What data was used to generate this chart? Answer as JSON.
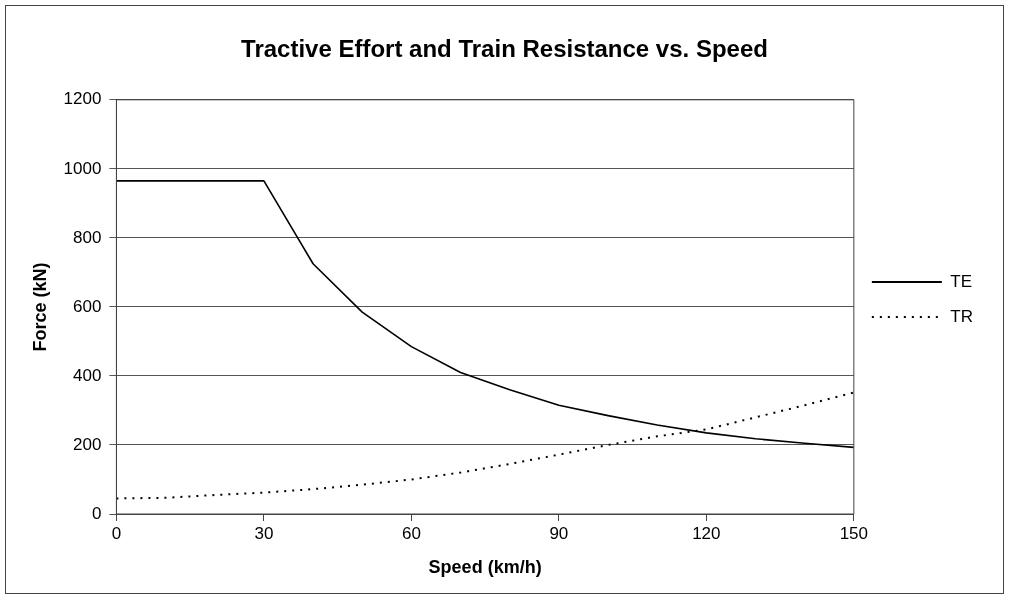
{
  "chart_data": {
    "type": "line",
    "title": "Tractive Effort and Train Resistance vs. Speed",
    "xlabel": "Speed (km/h)",
    "ylabel": "Force (kN)",
    "xlim": [
      0,
      150
    ],
    "xticks": [
      0,
      30,
      60,
      90,
      120,
      150
    ],
    "ylim": [
      0,
      1200
    ],
    "yticks": [
      0,
      200,
      400,
      600,
      800,
      1000,
      1200
    ],
    "grid": "y",
    "legend": "right",
    "marker": "none",
    "series": [
      {
        "name": "TE",
        "color": "#000000",
        "line_style": "solid",
        "x": [
          0,
          30,
          40,
          50,
          60,
          70,
          80,
          90,
          100,
          110,
          120,
          130,
          140,
          150
        ],
        "values": [
          965,
          965,
          725,
          585,
          485,
          410,
          360,
          315,
          285,
          258,
          235,
          218,
          205,
          193
        ]
      },
      {
        "name": "TR",
        "color": "#000000",
        "line_style": "dotted",
        "x": [
          0,
          10,
          20,
          30,
          40,
          50,
          60,
          70,
          80,
          90,
          100,
          110,
          120,
          130,
          140,
          150
        ],
        "values": [
          45,
          47,
          55,
          62,
          72,
          85,
          100,
          120,
          145,
          172,
          200,
          225,
          245,
          280,
          315,
          352
        ]
      }
    ]
  }
}
